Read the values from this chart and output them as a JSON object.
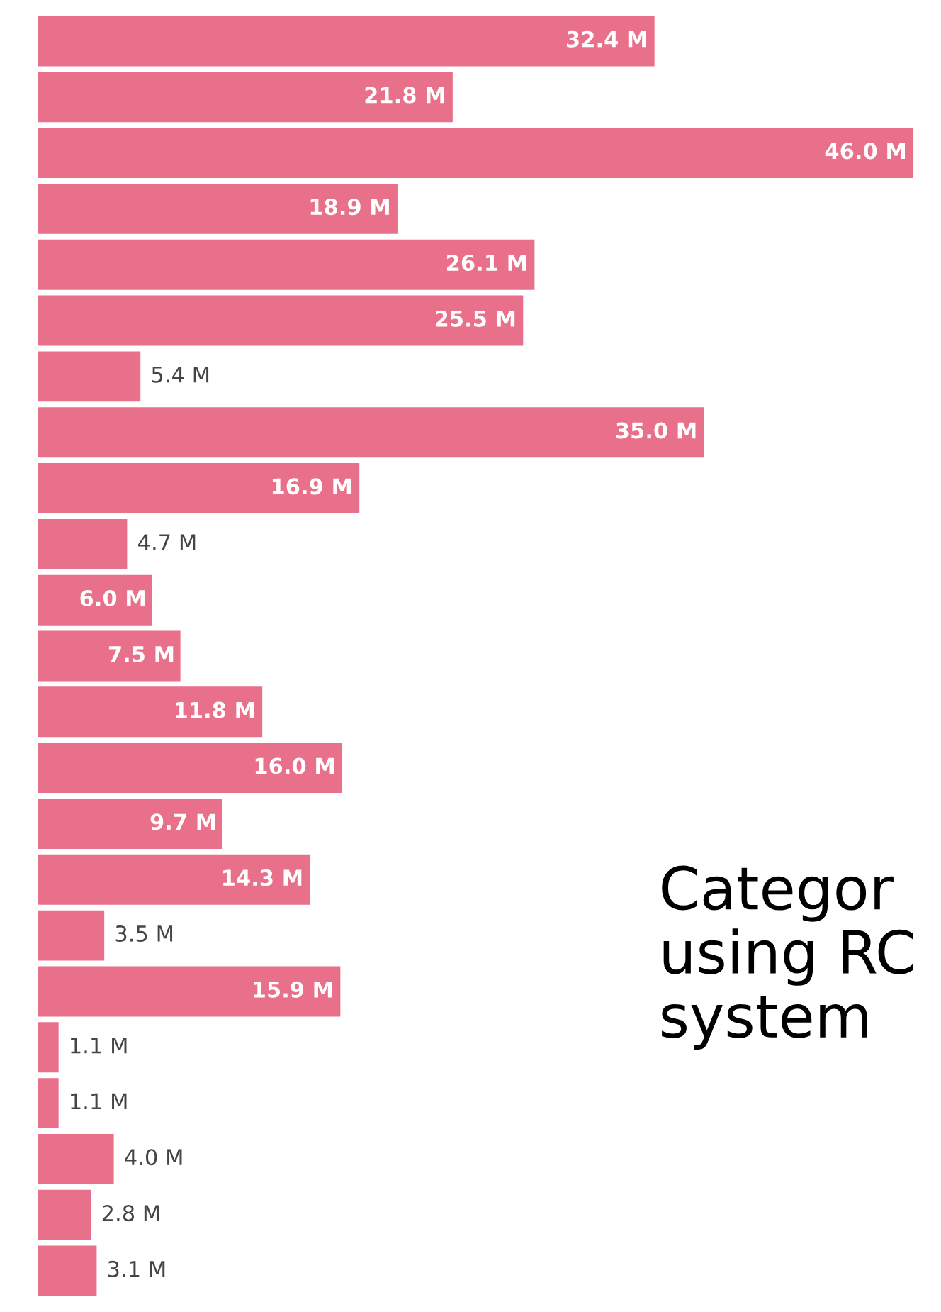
{
  "chart_data": {
    "type": "bar",
    "orientation": "horizontal",
    "grid": false,
    "legend": false,
    "categories": [
      null,
      null,
      null,
      null,
      null,
      null,
      null,
      null,
      null,
      null,
      null,
      null,
      null,
      null,
      null,
      null,
      null,
      null,
      null,
      null,
      null,
      null,
      null
    ],
    "values": [
      32.4,
      21.8,
      46.0,
      18.9,
      26.1,
      25.5,
      5.4,
      35.0,
      16.9,
      4.7,
      6.0,
      7.5,
      11.8,
      16.0,
      9.7,
      14.3,
      3.5,
      15.9,
      1.1,
      1.1,
      4.0,
      2.8,
      3.1
    ],
    "value_labels": [
      "32.4 M",
      "21.8 M",
      "46.0 M",
      "18.9 M",
      "26.1 M",
      "25.5 M",
      "5.4 M",
      "35.0 M",
      "16.9 M",
      "4.7 M",
      "6.0 M",
      "7.5 M",
      "11.8 M",
      "16.0 M",
      "9.7 M",
      "14.3 M",
      "3.5 M",
      "15.9 M",
      "1.1 M",
      "1.1 M",
      "4.0 M",
      "2.8 M",
      "3.1 M"
    ],
    "color": "#e8708a",
    "annotations": [
      "Categor\nusing RC\nsystem"
    ]
  }
}
